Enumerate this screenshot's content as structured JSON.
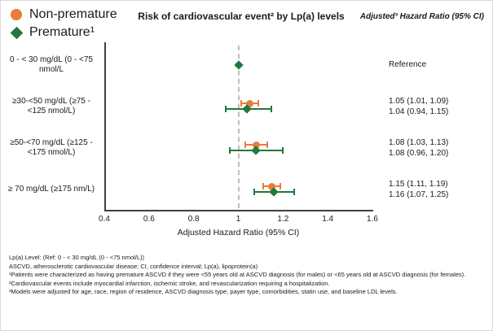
{
  "legend": {
    "items": [
      {
        "label": "Non-premature",
        "marker": "circle",
        "color": "#E87C3B"
      },
      {
        "label": "Premature¹",
        "marker": "diamond",
        "color": "#227939"
      }
    ]
  },
  "title": "Risk of cardiovascular event² by Lp(a) levels",
  "right_header": "Adjusted³ Hazard Ratio (95% CI)",
  "chart_data": {
    "type": "forest",
    "title": "Risk of cardiovascular event² by Lp(a) levels",
    "xlabel": "Adjusted Hazard Ratio (95% CI)",
    "xlim": [
      0.4,
      1.6
    ],
    "xticks": [
      "0.4",
      "0.6",
      "0.8",
      "1",
      "1.2",
      "1.4",
      "1.6"
    ],
    "reference_line": 1,
    "grid": false,
    "legend_position": "top-left",
    "categories": [
      "0 - < 30 mg/dL (0 - <75 nmol/L",
      "≥30-<50 mg/dL (≥75 - <125 nmol/L)",
      "≥50-<70 mg/dL (≥125 - <175 nmol/L)",
      "≥ 70 mg/dL (≥175 nm/L)"
    ],
    "series": [
      {
        "name": "Non-premature",
        "marker": "circle",
        "color": "#E87C3B",
        "points": [
          null,
          {
            "est": 1.05,
            "lo": 1.01,
            "hi": 1.09
          },
          {
            "est": 1.08,
            "lo": 1.03,
            "hi": 1.13
          },
          {
            "est": 1.15,
            "lo": 1.11,
            "hi": 1.19
          }
        ]
      },
      {
        "name": "Premature",
        "marker": "diamond",
        "color": "#227939",
        "points": [
          {
            "est": 1.0
          },
          {
            "est": 1.04,
            "lo": 0.94,
            "hi": 1.15
          },
          {
            "est": 1.08,
            "lo": 0.96,
            "hi": 1.2
          },
          {
            "est": 1.16,
            "lo": 1.07,
            "hi": 1.25
          }
        ]
      }
    ],
    "annotations": [
      [
        "Reference"
      ],
      [
        "1.05 (1.01, 1.09)",
        "1.04 (0.94, 1.15)"
      ],
      [
        "1.08 (1.03, 1.13)",
        "1.08 (0.96, 1.20)"
      ],
      [
        "1.15 (1.11, 1.19)",
        "1.16 (1.07, 1.25)"
      ]
    ]
  },
  "footnotes": [
    "Lp(a) Level: (Ref: 0 - < 30 mg/dL (0 - <75 nmol/L))",
    "ASCVD, atherosclerotic cardiovascular disease; CI, confidence interval; Lp(a), lipoprotein(a)",
    "¹Patients were characterized as having premature ASCVD if they were <55 years old at ASCVD diagnosis (for males) or <65 years old at ASCVD diagnosis (for females).",
    "²Cardiovascular events include myocardial infarction, ischemic stroke, and revascularization requiring a hospitalization.",
    "³Models were adjusted for age, race, region of residence, ASCVD diagnosis type, payer type, comorbidities, statin use, and baseline LDL levels."
  ],
  "colors": {
    "axis": "#404040",
    "reference_line": "#bdbdbd",
    "text": "#1a1a1a",
    "non_premature": "#E87C3B",
    "premature": "#227939"
  }
}
